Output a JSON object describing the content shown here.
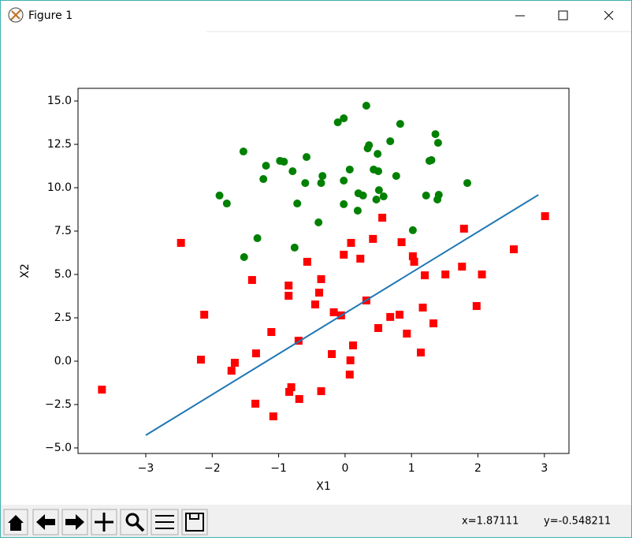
{
  "window": {
    "title": "Figure 1"
  },
  "status": {
    "x": "x=1.87111",
    "y": "y=-0.548211"
  },
  "chart_data": {
    "type": "scatter",
    "xlabel": "X1",
    "ylabel": "X2",
    "xlim": [
      -4.02,
      3.37
    ],
    "ylim": [
      -5.32,
      15.73
    ],
    "xticks": [
      {
        "value": -3,
        "label": "−3"
      },
      {
        "value": -2,
        "label": "−2"
      },
      {
        "value": -1,
        "label": "−1"
      },
      0,
      1,
      2,
      3
    ],
    "yticks": [
      {
        "value": -5,
        "label": "−5.0"
      },
      {
        "value": -2.5,
        "label": "−2.5"
      },
      {
        "value": 0,
        "label": "0.0"
      },
      2.5,
      {
        "value": 5,
        "label": "5.0"
      },
      7.5,
      {
        "value": 10,
        "label": "10.0"
      },
      12.5,
      {
        "value": 15,
        "label": "15.0"
      }
    ],
    "series": [
      {
        "marker": "circle",
        "color": "#008000",
        "x": [
          0.32,
          -0.02,
          -0.11,
          0.83,
          1.36,
          0.68,
          1.4,
          0.36,
          0.34,
          -1.53,
          0.49,
          -0.58,
          1.27,
          1.3,
          -0.98,
          -0.92,
          -1.19,
          -0.79,
          0.07,
          0.43,
          0.5,
          -0.34,
          -1.23,
          0.77,
          -0.02,
          -0.6,
          -0.36,
          1.84,
          0.2,
          0.27,
          0.51,
          1.22,
          1.41,
          0.58,
          -1.89,
          1.39,
          0.47,
          -0.72,
          -1.78,
          -0.02,
          0.19,
          -0.4,
          1.02,
          -1.32,
          -0.76,
          -1.52
        ],
        "values": [
          14.73,
          14.0,
          13.77,
          13.68,
          13.09,
          12.68,
          12.59,
          12.45,
          12.27,
          12.09,
          11.95,
          11.77,
          11.55,
          11.59,
          11.55,
          11.5,
          11.27,
          10.95,
          11.05,
          11.05,
          10.95,
          10.68,
          10.5,
          10.68,
          10.41,
          10.27,
          10.27,
          10.27,
          9.68,
          9.55,
          9.86,
          9.55,
          9.59,
          9.5,
          9.55,
          9.32,
          9.32,
          9.09,
          9.09,
          9.05,
          8.68,
          8.0,
          7.55,
          7.09,
          6.55,
          6.0
        ]
      },
      {
        "marker": "square",
        "color": "#ff0000",
        "x": [
          3.01,
          0.56,
          1.79,
          -2.47,
          0.42,
          0.85,
          0.09,
          -0.02,
          0.23,
          2.54,
          1.02,
          1.04,
          -0.57,
          -1.4,
          -0.85,
          -0.85,
          -0.36,
          -0.39,
          -0.45,
          1.2,
          1.51,
          2.06,
          1.76,
          0.32,
          -2.12,
          -0.17,
          -0.06,
          1.98,
          1.17,
          0.82,
          0.68,
          1.33,
          0.5,
          0.93,
          -1.11,
          -0.7,
          0.12,
          1.14,
          -0.2,
          0.08,
          -2.17,
          -1.66,
          -1.71,
          -1.34,
          0.07,
          -3.66,
          -0.81,
          -0.84,
          -0.36,
          -0.69,
          -1.35,
          -1.08
        ],
        "values": [
          8.36,
          8.27,
          7.64,
          6.82,
          7.05,
          6.86,
          6.82,
          6.14,
          5.91,
          6.45,
          6.05,
          5.73,
          5.73,
          4.68,
          4.36,
          3.77,
          4.73,
          3.95,
          3.27,
          4.95,
          5.0,
          5.0,
          5.45,
          3.5,
          2.68,
          2.82,
          2.64,
          3.18,
          3.09,
          2.68,
          2.55,
          2.18,
          1.91,
          1.59,
          1.68,
          1.18,
          0.91,
          0.5,
          0.41,
          0.05,
          0.09,
          -0.09,
          -0.55,
          0.45,
          -0.77,
          -1.64,
          -1.5,
          -1.77,
          -1.73,
          -2.18,
          -2.45,
          -3.18
        ]
      },
      {
        "marker": "line",
        "color": "#1f77b4",
        "x": [
          -3.0,
          2.91
        ],
        "values": [
          -4.27,
          9.59
        ]
      }
    ]
  }
}
